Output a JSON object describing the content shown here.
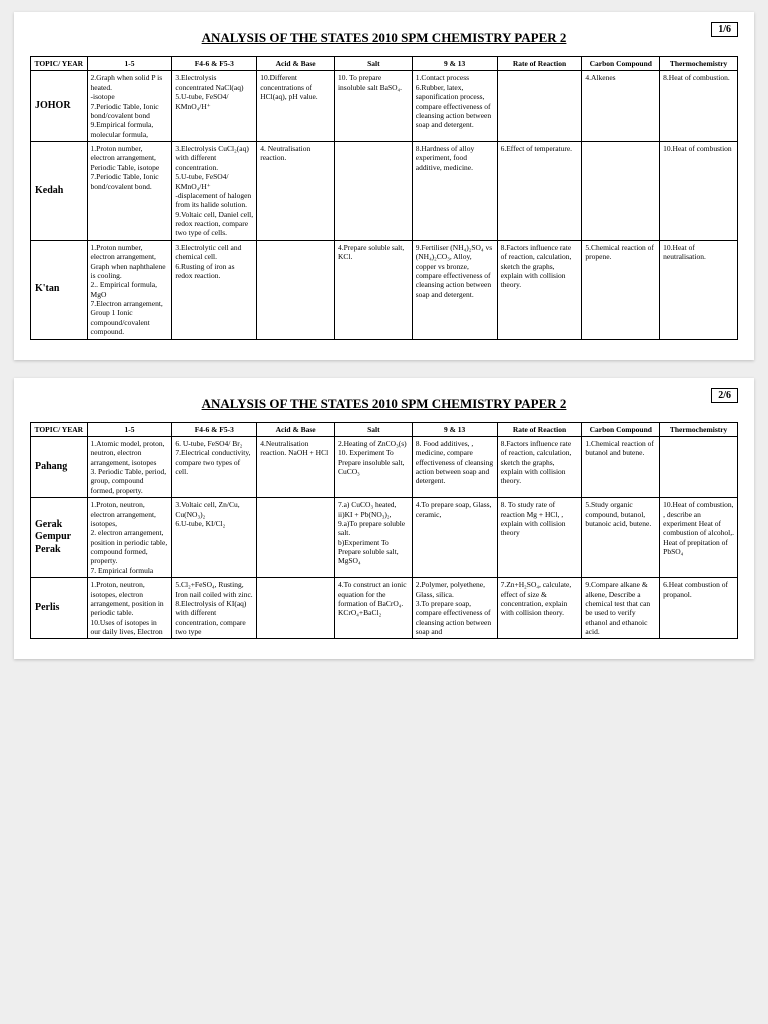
{
  "doc": {
    "title": "ANALYSIS OF THE STATES 2010 SPM CHEMISTRY PAPER 2",
    "columns": [
      "TOPIC/ YEAR",
      "1-5",
      "F4-6 & F5-3",
      "Acid & Base",
      "Salt",
      "9 & 13",
      "Rate of Reaction",
      "Carbon Compound",
      "Thermochemistry"
    ],
    "col_widths_pct": [
      8,
      12,
      12,
      11,
      11,
      12,
      12,
      11,
      11
    ],
    "font": {
      "body_pt": 7.5,
      "header_pt": 10,
      "title_pt": 13
    },
    "colors": {
      "page_bg": "#ffffff",
      "body_bg": "#eeeeee",
      "border": "#000000",
      "text": "#000000"
    }
  },
  "pages": [
    {
      "num": "1/6",
      "rows": [
        {
          "state": "JOHOR",
          "cells": [
            "2.Graph when solid P is heated.\n-isotope\n7.Periodic Table, Ionic bond/covalent bond\n9.Empirical formula, molecular formula,",
            "3.Electrolysis concentrated NaCl(aq)\n5.U-tube, FeSO4/ KMnO₄/H⁺",
            "10.Different concentrations of HCl(aq), pH value.",
            "10. To prepare insoluble salt BaSO₄.",
            "1.Contact process\n6.Rubber, latex, saponification process, compare effectiveness of cleansing action between soap and detergent.",
            "",
            "4.Alkenes",
            "8.Heat of combustion."
          ]
        },
        {
          "state": "Kedah",
          "cells": [
            "1.Proton number, electron arrangement, Periodic Table, isotope\n7.Periodic Table, Ionic bond/covalent bond.",
            "3.Electrolysis CuCl₂(aq) with different concentration.\n5.U-tube, FeSO4/ KMnO₄/H⁺\n-displacement of halogen from its halide solution.\n9.Voltaic cell, Daniel cell, redox reaction, compare two type of cells.",
            "4. Neutralisation reaction.",
            "",
            "8.Hardness of alloy experiment, food additive, medicine.",
            "6.Effect of temperature.",
            "",
            "10.Heat of combustion"
          ]
        },
        {
          "state": "K'tan",
          "cells": [
            "1.Proton number, electron arrangement, Graph when naphthalene is cooling.\n2.. Empirical formula, MgO\n7.Electron arrangement, Group 1 Ionic compound/covalent compound.",
            "3.Electrolytic cell and chemical cell.\n6.Rusting of iron as redox reaction.",
            "",
            "4.Prepare soluble salt, KCl.",
            "9.Fertiliser (NH₄)₂SO₄ vs (NH₄)₂CO₃, Alloy, copper vs bronze, compare effectiveness of cleansing action between soap and detergent.",
            "8.Factors influence rate of reaction, calculation, sketch the graphs, explain with collision theory.",
            "5.Chemical reaction of propene.",
            "10.Heat of neutralisation."
          ]
        }
      ]
    },
    {
      "num": "2/6",
      "rows": [
        {
          "state": "Pahang",
          "cells": [
            "1.Atomic model, proton, neutron, electron arrangement, isotopes\n3. Periodic Table, period, group, compound formed, property.",
            "6. U-tube, FeSO4/ Br₂\n7.Electrical conductivity, compare two types of cell.",
            "4.Neutralisation reaction. NaOH + HCl",
            "2.Heating of ZnCO₃(s)\n10. Experiment To Prepare insoluble salt, CuCO₃",
            "8. Food additives, , medicine, compare effectiveness of cleansing action between soap and detergent.",
            "8.Factors influence rate of reaction, calculation, sketch the graphs, explain with collision theory.",
            "1.Chemical reaction of butanol and butene.",
            ""
          ]
        },
        {
          "state": "Gerak Gempur Perak",
          "cells": [
            "1.Proton, neutron, electron arrangement, isotopes,\n2. electron arrangement, position in periodic table, compound formed, property.\n7. Empirical formula",
            "3.Voltaic cell, Zn/Cu, Cu(NO₃)₂\n6.U-tube, KI/Cl₂",
            "",
            "7.a) CuCO₃ heated,\nii)KI + Pb(NO₃)₂,\n9.a)To prepare soluble salt.\nb)Experiment To Prepare soluble salt, MgSO₄",
            "4.To prepare soap, Glass, ceramic,",
            "8. To study rate of reaction Mg + HCl, , explain with collision theory",
            "5.Study organic compound, butanol, butanoic acid, butene.",
            "10.Heat of combustion, , describe an experiment Heat of combustion of alcohol,.\nHeat of prepitation of PbSO₄"
          ]
        },
        {
          "state": "Perlis",
          "cells": [
            "1.Proton, neutron, isotopes, electron arrangement, position in periodic table.\n10.Uses of isotopes in our daily lives, Electron",
            "5.Cl₂+FeSO₄, Rusting, Iron nail coiled with zinc.\n8.Electrolysis of KI(aq) with different concentration, compare two type",
            "",
            "4.To construct an ionic equation for the formation of BaCrO₄. KCrO₄+BaCl₂",
            "2.Polymer, polyethene, Glass, silica.\n3.To prepare soap, compare effectiveness of cleansing action between soap and",
            "7.Zn+H₂SO₄, calculate, effect of size & concentration, explain with collision theory.",
            "9.Compare alkane & alkene, Describe a chemical test that can be used to verify ethanol and ethanoic acid.",
            "6.Heat combustion of propanol."
          ]
        }
      ]
    }
  ]
}
